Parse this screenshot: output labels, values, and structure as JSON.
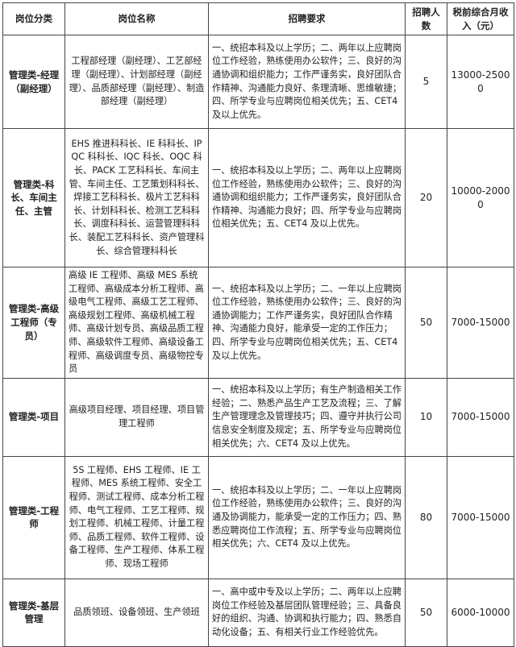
{
  "headers": {
    "category": "岗位分类",
    "position": "岗位名称",
    "requirements": "招聘要求",
    "headcount": "招聘人数",
    "salary": "税前综合月收入（元）"
  },
  "rows": [
    {
      "category": "管理类-经理（副经理）",
      "positions": "工程部经理（副经理）、工艺部经理（副经理）、计划部经理（副经理）、品质部经理（副经理）、制造部经理（副经理）",
      "requirements": "一、统招本科及以上学历；二、两年以上应聘岗位工作经验，熟练使用办公软件；三、良好的沟通协调和组织能力；工作严谨务实，良好团队合作精神、沟通能力良好、条理清晰、思维敏捷；四、所学专业与应聘岗位相关优先；五、CET4及以上优先。",
      "headcount": "5",
      "salary": "13000-25000"
    },
    {
      "category": "管理类-科长、车间主任、主管",
      "positions": "EHS 推进科科长、IE 科科长、IPQC 科科长、IQC 科长、OQC 科长、PACK 工艺科科长、车间主管、车间主任、工艺策划科科长、焊接工艺科科长、极片工艺科科长、计划科科长、检测工艺科科长、调度科科长、运营管理科科长、装配工艺科科长、资产管理科长、综合管理科科长",
      "requirements": "一、统招本科及以上学历；二、两年以上应聘岗位工作经验，熟练使用办公软件；三、良好的沟通协调和组织能力；工作严谨务实，良好团队合作精神、沟通能力良好；四、所学专业与应聘岗位相关优先；五、CET4 及以上优先。",
      "headcount": "20",
      "salary": "10000-20000"
    },
    {
      "category": "管理类-高级工程师（专员）",
      "positions": "高级 IE 工程师、高级 MES 系统工程师、高级成本分析工程师、高级电气工程师、高级工艺工程师、高级规划工程师、高级机械工程师、高级计划专员、高级品质工程师、高级软件工程师、高级设备工程师、高级调度专员、高级物控专员",
      "requirements": "一、统招本科及以上学历；二、一年以上应聘岗位工作经验，熟练使用办公软件；三、良好的沟通协调能力；工作严谨务实，良好团队合作精神、沟通能力良好，能承受一定的工作压力；四、所学专业与应聘岗位相关优先；五、CET4 及以上优先。",
      "headcount": "50",
      "salary": "7000-15000"
    },
    {
      "category": "管理类-项目",
      "positions": "高级项目经理、项目经理、项目管理工程师",
      "requirements": "一、统招本科及以上学历；有生产制造相关工作经验；二、熟悉产品生产工艺及流程；三、了解生产管理理念及管理技巧；四、遵守并执行公司信息安全制度及规定；五、所学专业与应聘岗位相关优先；六、CET4 及以上优先。",
      "headcount": "10",
      "salary": "7000-15000"
    },
    {
      "category": "管理类-工程师",
      "positions": "5S 工程师、EHS 工程师、IE 工程师、MES 系统工程师、安全工程师、测试工程师、成本分析工程师、电气工程师、工艺工程师、规划工程师、机械工程师、计量工程师、品质工程师、软件工程师、设备工程师、生产工程师、体系工程师、现场工程师",
      "requirements": "一、统招本科及以上学历；二、一年以上应聘岗位工作经验，熟练使用办公软件；三、良好的沟通及协调能力，能承受一定的工作压力；四、熟悉应聘岗位工作流程；五、所学专业与应聘岗位相关优先；六、CET4 及以上优先。",
      "headcount": "80",
      "salary": "7000-15000"
    },
    {
      "category": "管理类-基层管理",
      "positions": "品质领班、设备领班、生产领班",
      "requirements": "一、高中或中专及以上学历；二、两年以上应聘岗位工作经验及基层团队管理经验；三、具备良好的组织、沟通、协调和执行能力；四、熟悉自动化设备；五、有相关行业工作经验优先。",
      "headcount": "50",
      "salary": "6000-10000"
    }
  ]
}
